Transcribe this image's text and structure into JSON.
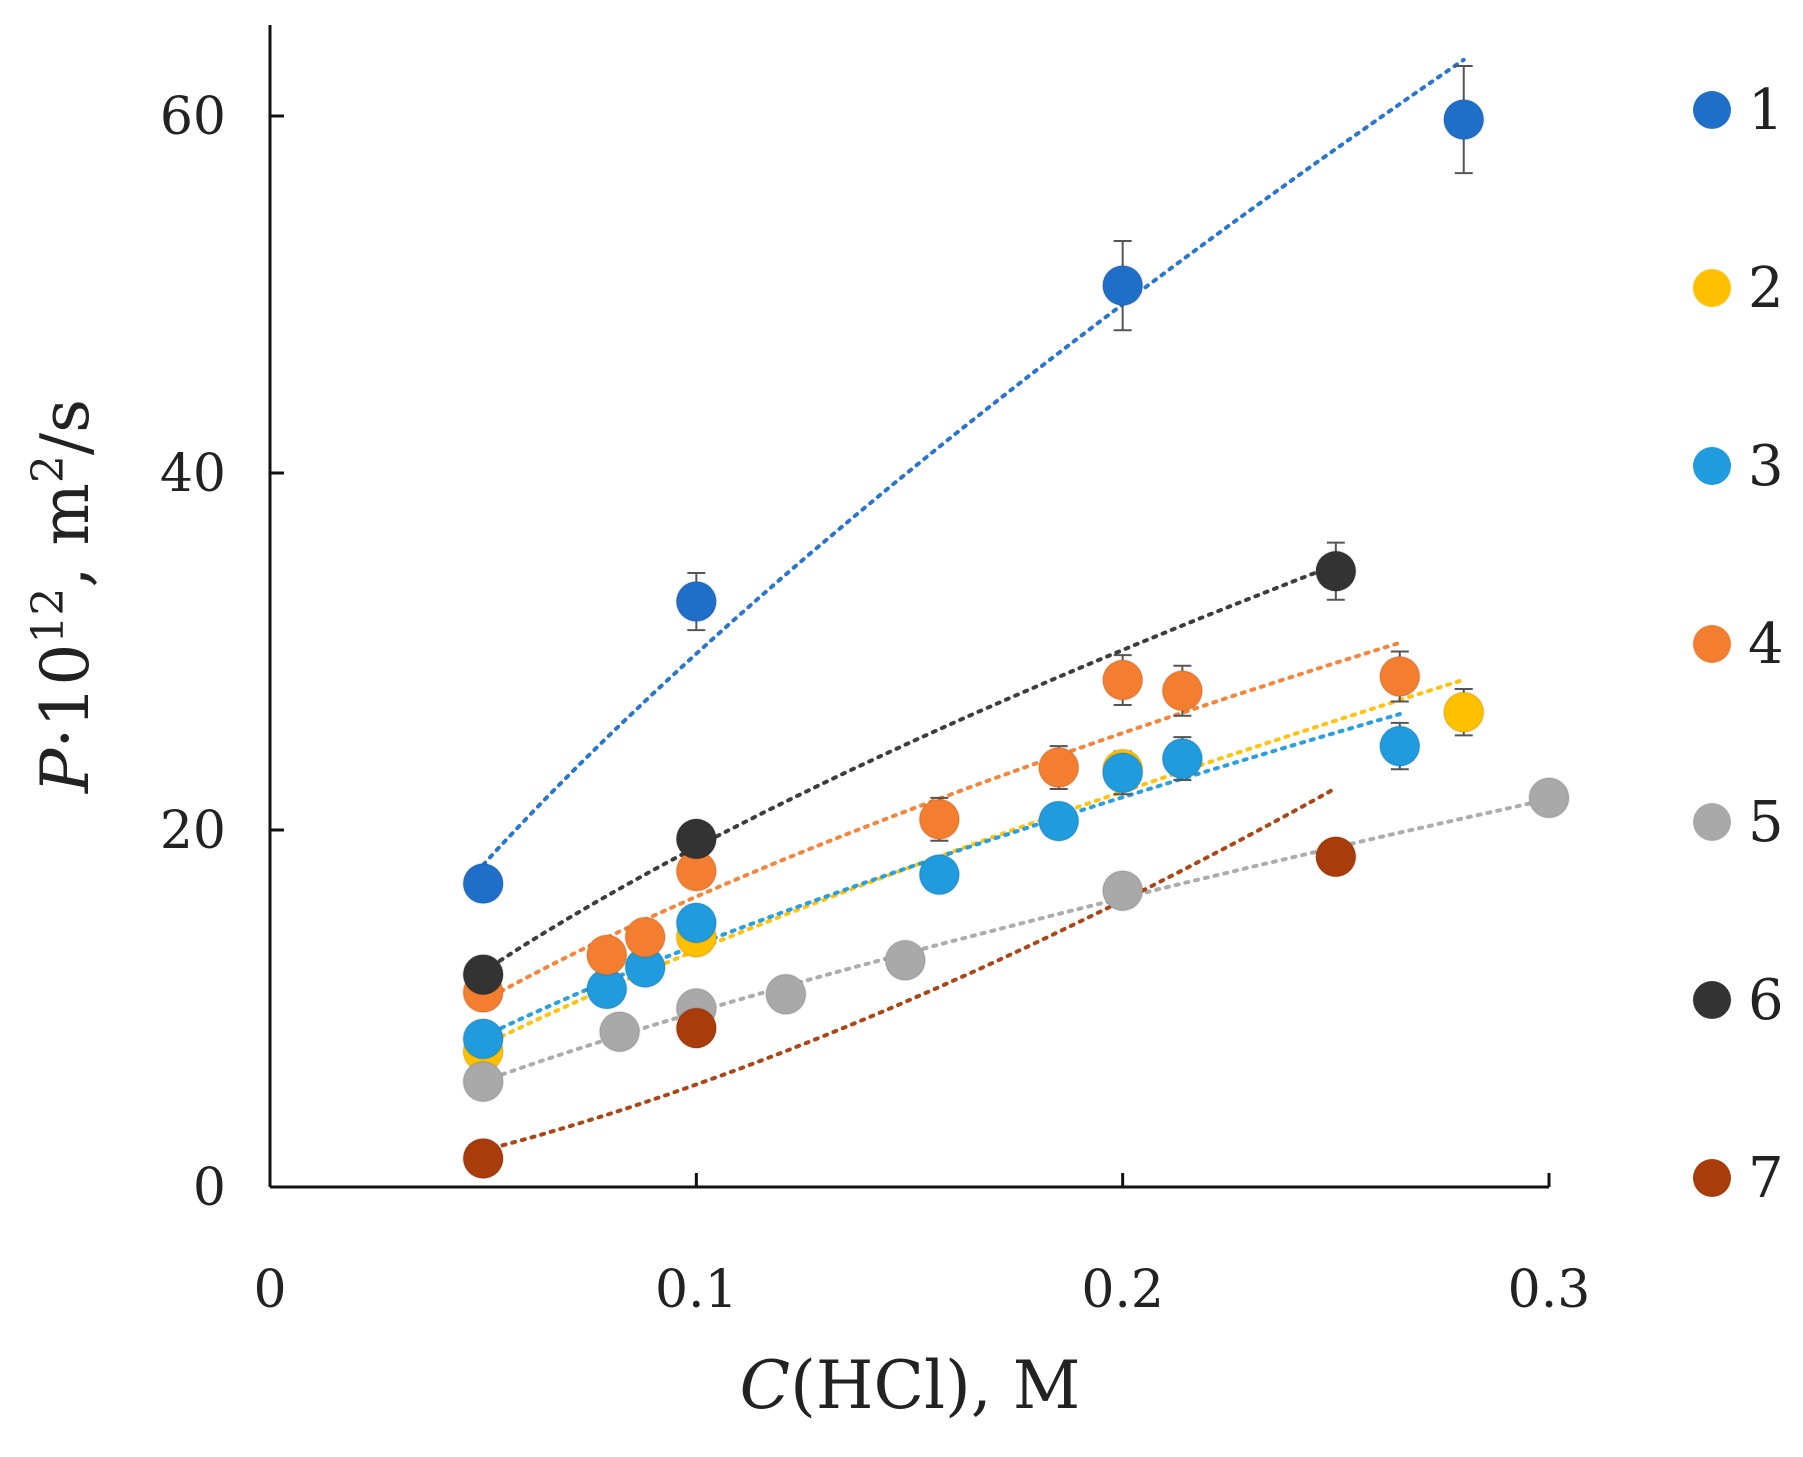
{
  "chart_data": {
    "type": "scatter",
    "title": "",
    "xlabel": {
      "italic": "C",
      "rest": "(HCl), M"
    },
    "ylabel": {
      "italic": "P",
      "mid": "·10",
      "sup1": "12",
      "mid2": ", m",
      "sup2": "2",
      "rest": "/s"
    },
    "xlim": [
      0,
      0.3
    ],
    "ylim": [
      0,
      65
    ],
    "x_ticks": [
      {
        "value": 0,
        "label": "0"
      },
      {
        "value": 0.1,
        "label": "0.1"
      },
      {
        "value": 0.2,
        "label": "0.2"
      },
      {
        "value": 0.3,
        "label": "0.3"
      }
    ],
    "y_ticks": [
      {
        "value": 0,
        "label": "0"
      },
      {
        "value": 20,
        "label": "20"
      },
      {
        "value": 40,
        "label": "40"
      },
      {
        "value": 60,
        "label": "60"
      }
    ],
    "grid": false,
    "legend_position": "right",
    "series": [
      {
        "name": "1",
        "color": "#1f6fc9",
        "x": [
          0.05,
          0.1,
          0.2,
          0.28
        ],
        "y": [
          17,
          32.8,
          50.5,
          59.8
        ],
        "err": [
          0,
          1.6,
          2.5,
          3.0
        ],
        "trend": {
          "type": "power",
          "x_range": [
            0.05,
            0.28
          ]
        }
      },
      {
        "name": "2",
        "color": "#ffc000",
        "x": [
          0.05,
          0.1,
          0.2,
          0.28
        ],
        "y": [
          7.6,
          14.0,
          23.4,
          26.6
        ],
        "err": [
          0,
          0,
          0,
          1.3
        ],
        "trend": {
          "type": "power",
          "x_range": [
            0.05,
            0.28
          ]
        }
      },
      {
        "name": "3",
        "color": "#1f9bde",
        "x": [
          0.05,
          0.079,
          0.088,
          0.1,
          0.157,
          0.185,
          0.2,
          0.214,
          0.265
        ],
        "y": [
          8.3,
          11.1,
          12.3,
          14.8,
          17.5,
          20.5,
          23.2,
          24.0,
          24.7
        ],
        "err": [
          0,
          0,
          0,
          0,
          0,
          0,
          1.2,
          1.2,
          1.3
        ],
        "trend": {
          "type": "power",
          "x_range": [
            0.05,
            0.265
          ]
        }
      },
      {
        "name": "4",
        "color": "#f47e30",
        "x": [
          0.05,
          0.079,
          0.088,
          0.1,
          0.157,
          0.185,
          0.2,
          0.214,
          0.265
        ],
        "y": [
          10.9,
          13.0,
          14.0,
          17.7,
          20.6,
          23.5,
          28.4,
          27.8,
          28.6
        ],
        "err": [
          0,
          0,
          0,
          0,
          1.2,
          1.2,
          1.4,
          1.4,
          1.4
        ],
        "trend": {
          "type": "power",
          "x_range": [
            0.05,
            0.265
          ]
        }
      },
      {
        "name": "5",
        "color": "#a9a9a9",
        "x": [
          0.05,
          0.082,
          0.1,
          0.121,
          0.149,
          0.2,
          0.3
        ],
        "y": [
          5.9,
          8.7,
          10.0,
          10.8,
          12.7,
          16.6,
          21.8
        ],
        "err": [
          0,
          0,
          0,
          0,
          0,
          0,
          0.9
        ],
        "trend": {
          "type": "power",
          "x_range": [
            0.05,
            0.3
          ]
        }
      },
      {
        "name": "6",
        "color": "#333333",
        "x": [
          0.05,
          0.1,
          0.25
        ],
        "y": [
          11.9,
          19.5,
          34.5
        ],
        "err": [
          0,
          0,
          1.6
        ],
        "trend": {
          "type": "power",
          "x_range": [
            0.05,
            0.25
          ]
        }
      },
      {
        "name": "7",
        "color": "#a83c0a",
        "x": [
          0.05,
          0.1,
          0.25
        ],
        "y": [
          1.6,
          8.9,
          18.5
        ],
        "err": [
          0,
          0,
          0
        ],
        "trend": {
          "type": "power",
          "x_range": [
            0.05,
            0.25
          ]
        }
      }
    ]
  }
}
